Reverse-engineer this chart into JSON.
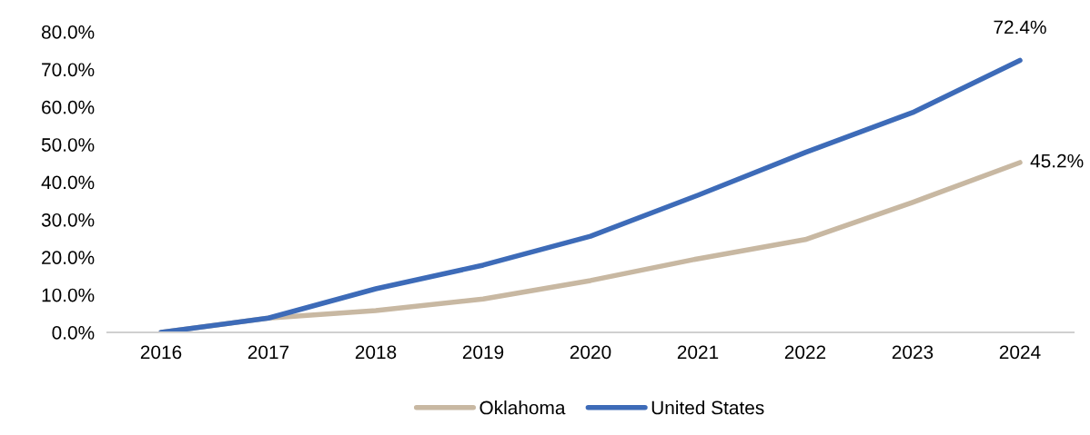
{
  "chart_data": {
    "type": "line",
    "categories": [
      "2016",
      "2017",
      "2018",
      "2019",
      "2020",
      "2021",
      "2022",
      "2023",
      "2024"
    ],
    "series": [
      {
        "name": "Oklahoma",
        "color": "#c8b8a2",
        "values": [
          0,
          3.8,
          5.8,
          8.9,
          13.8,
          19.6,
          24.7,
          34.6,
          45.2
        ],
        "value_labels": [
          null,
          null,
          null,
          null,
          null,
          null,
          null,
          null,
          "45.2%"
        ]
      },
      {
        "name": "United States",
        "color": "#3d6bb8",
        "values": [
          0,
          3.8,
          11.6,
          17.9,
          25.6,
          36.5,
          47.9,
          58.5,
          72.4
        ],
        "value_labels": [
          null,
          null,
          null,
          null,
          null,
          null,
          null,
          null,
          "72.4%"
        ]
      }
    ],
    "ylim": [
      0,
      80
    ],
    "yticks": [
      {
        "value": 0,
        "label": "0.0%"
      },
      {
        "value": 10,
        "label": "10.0%"
      },
      {
        "value": 20,
        "label": "20.0%"
      },
      {
        "value": 30,
        "label": "30.0%"
      },
      {
        "value": 40,
        "label": "40.0%"
      },
      {
        "value": 50,
        "label": "50.0%"
      },
      {
        "value": 60,
        "label": "60.0%"
      },
      {
        "value": 70,
        "label": "70.0%"
      },
      {
        "value": 80,
        "label": "80.0%"
      }
    ],
    "grid": false,
    "legend": "bottom",
    "marker": "none",
    "line_style": "solid"
  }
}
